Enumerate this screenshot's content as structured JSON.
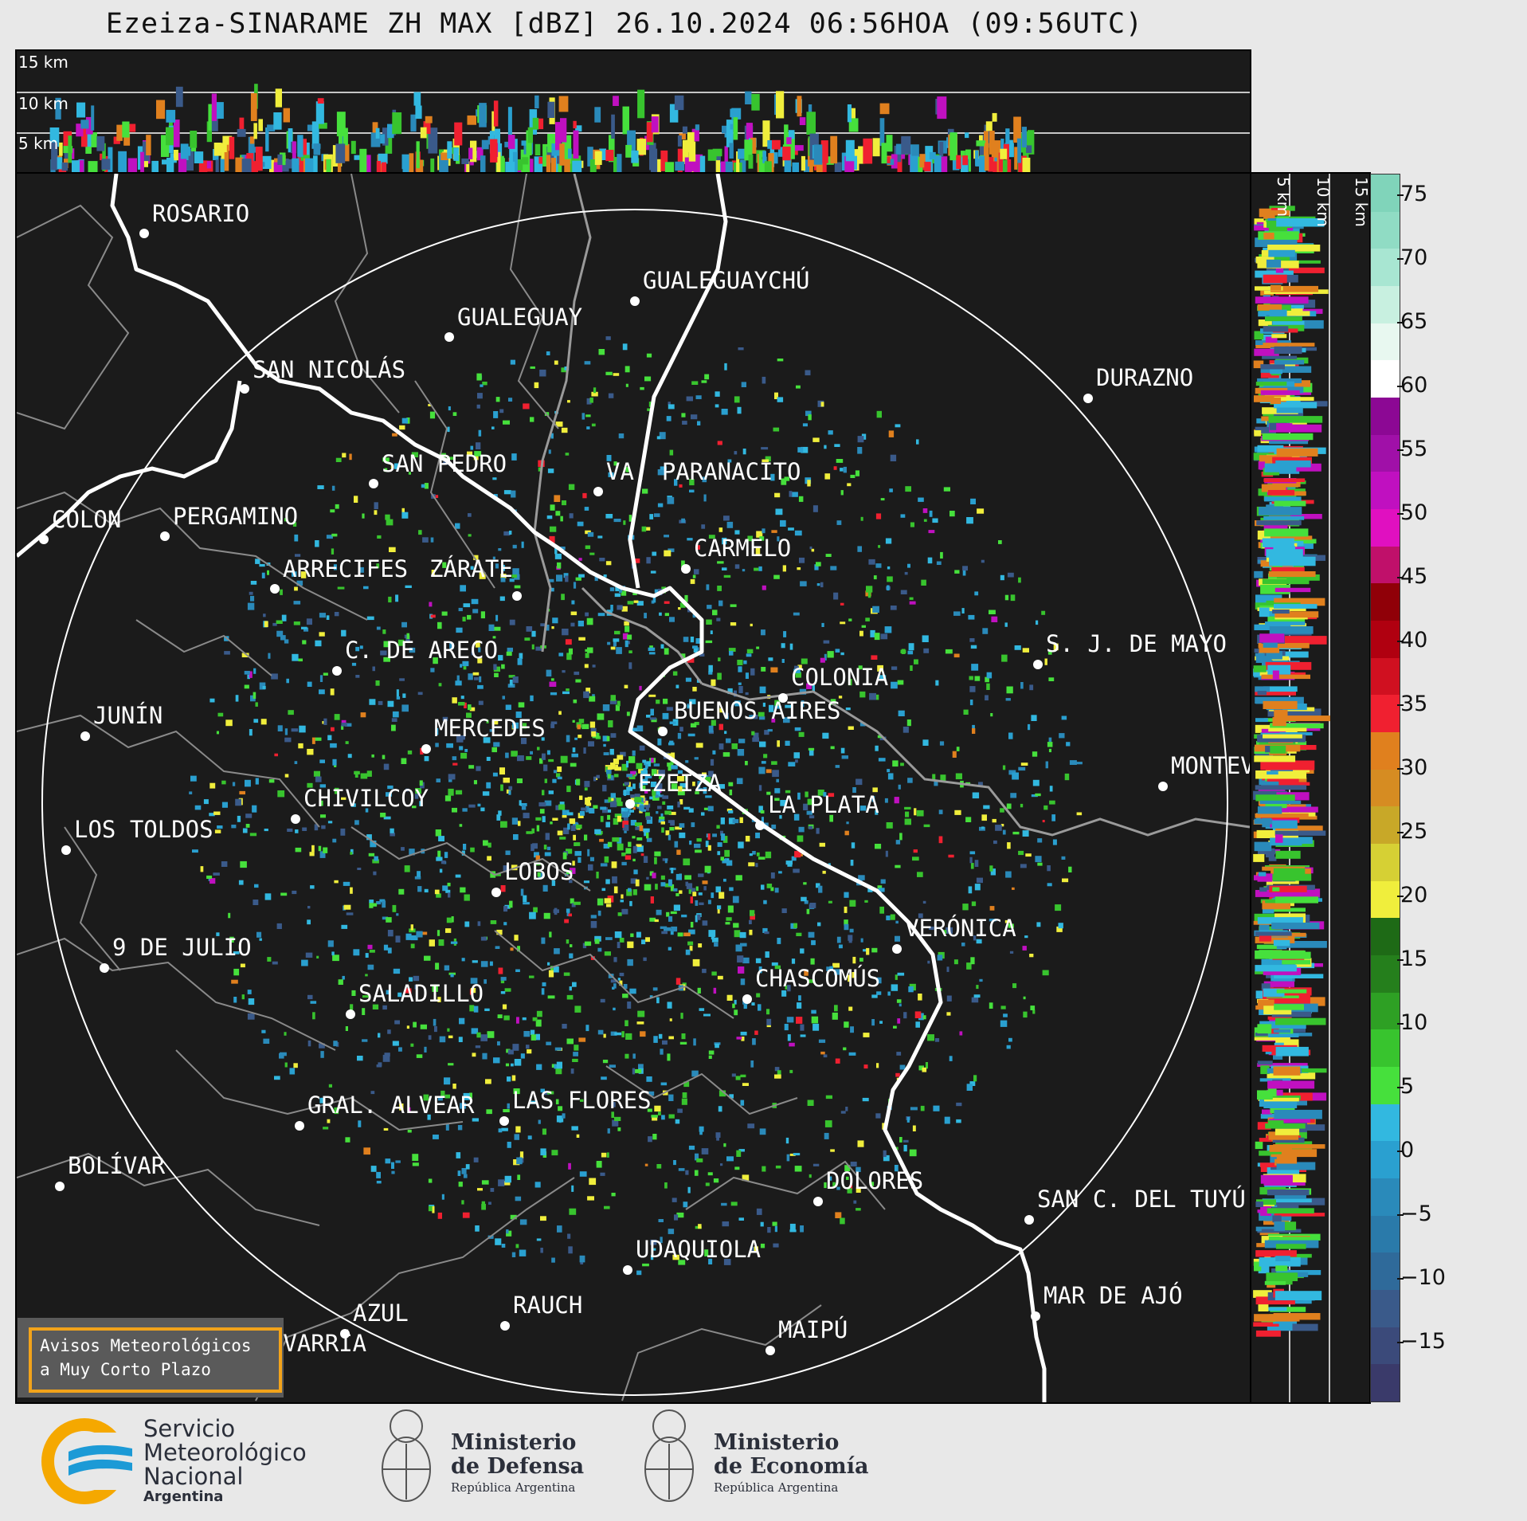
{
  "title": "Ezeiza-SINARAME ZH MAX [dBZ] 26.10.2024 06:56HOA (09:56UTC)",
  "top_panel": {
    "height_labels": [
      "15 km",
      "10 km",
      "5 km"
    ]
  },
  "side_panel": {
    "height_labels": [
      "5 km",
      "10 km",
      "15 km"
    ]
  },
  "colorbar": {
    "ticks": [
      "75",
      "70",
      "65",
      "60",
      "55",
      "50",
      "45",
      "40",
      "35",
      "30",
      "25",
      "20",
      "15",
      "10",
      "5",
      "0",
      "−5",
      "−10",
      "−15"
    ],
    "colors": [
      "#3a3a6a",
      "#3b4a7a",
      "#3a5a8a",
      "#2f6a9a",
      "#2a7aaa",
      "#2a8aba",
      "#2aa0d0",
      "#32b8e0",
      "#46e03c",
      "#38c42e",
      "#2ea024",
      "#257f1c",
      "#1e6a16",
      "#f0ee3c",
      "#d6d034",
      "#c8a828",
      "#d68c22",
      "#e0801e",
      "#f02030",
      "#d01020",
      "#b00010",
      "#900008",
      "#c0106a",
      "#e010c0",
      "#c010c0",
      "#a010a8",
      "#8c0894",
      "#ffffff",
      "#e8f8f0",
      "#c8f0e0",
      "#a8e6d2",
      "#90dcc4",
      "#80d4ba"
    ]
  },
  "cities": [
    {
      "name": "ROSARIO"
    },
    {
      "name": "GUALEGUAYCHÚ"
    },
    {
      "name": "GUALEGUAY"
    },
    {
      "name": "SAN NICOLÁS"
    },
    {
      "name": "DURAZNO"
    },
    {
      "name": "SAN PEDRO"
    },
    {
      "name": "VA. PARANACITO"
    },
    {
      "name": "COLON"
    },
    {
      "name": "PERGAMINO"
    },
    {
      "name": "CARMELO"
    },
    {
      "name": "ARRECIFES"
    },
    {
      "name": "ZÁRATE"
    },
    {
      "name": "S. J. DE MAYO"
    },
    {
      "name": "C. DE ARECO"
    },
    {
      "name": "COLONIA"
    },
    {
      "name": "JUNÍN"
    },
    {
      "name": "BUENOS AIRES"
    },
    {
      "name": "MERCEDES"
    },
    {
      "name": "MONTEVIDEO"
    },
    {
      "name": "EZEIZA"
    },
    {
      "name": "CHIVILCOY"
    },
    {
      "name": "LA PLATA"
    },
    {
      "name": "LOS TOLDOS"
    },
    {
      "name": "LOBOS"
    },
    {
      "name": "VERÓNICA"
    },
    {
      "name": "9 DE JULIO"
    },
    {
      "name": "CHASCOMÚS"
    },
    {
      "name": "SALADILLO"
    },
    {
      "name": "GRAL. ALVEAR"
    },
    {
      "name": "LAS FLORES"
    },
    {
      "name": "BOLÍVAR"
    },
    {
      "name": "DOLORES"
    },
    {
      "name": "SAN C. DEL TUYÚ"
    },
    {
      "name": "UDAQUIOLA"
    },
    {
      "name": "MAR DE AJÓ"
    },
    {
      "name": "AZUL"
    },
    {
      "name": "RAUCH"
    },
    {
      "name": "OLAVARRÍA"
    },
    {
      "name": "MAIPÚ"
    }
  ],
  "avisos": {
    "line1": "Avisos Meteorológicos",
    "line2": "a Muy Corto Plazo"
  },
  "logos": {
    "smn": {
      "line1": "Servicio",
      "line2": "Meteorológico",
      "line3": "Nacional",
      "line4": "Argentina"
    },
    "defensa": {
      "line1": "Ministerio",
      "line2": "de Defensa",
      "line3": "República Argentina"
    },
    "economia": {
      "line1": "Ministerio",
      "line2": "de Economía",
      "line3": "República Argentina"
    }
  }
}
